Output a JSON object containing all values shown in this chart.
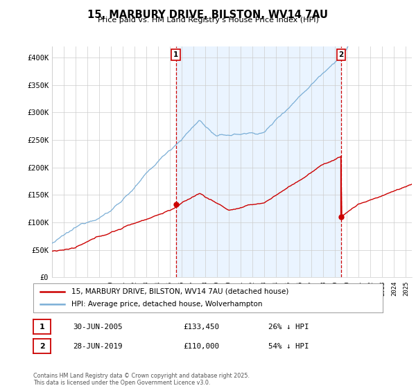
{
  "title": "15, MARBURY DRIVE, BILSTON, WV14 7AU",
  "subtitle": "Price paid vs. HM Land Registry's House Price Index (HPI)",
  "ylabel_ticks": [
    "£0",
    "£50K",
    "£100K",
    "£150K",
    "£200K",
    "£250K",
    "£300K",
    "£350K",
    "£400K"
  ],
  "ytick_values": [
    0,
    50000,
    100000,
    150000,
    200000,
    250000,
    300000,
    350000,
    400000
  ],
  "ylim": [
    0,
    420000
  ],
  "xlim_start": 1995.0,
  "xlim_end": 2025.5,
  "hpi_color": "#7aaed6",
  "price_color": "#cc0000",
  "marker1_x": 2005.5,
  "marker2_x": 2019.5,
  "marker1_price": 133450,
  "marker2_price": 110000,
  "legend_line1": "15, MARBURY DRIVE, BILSTON, WV14 7AU (detached house)",
  "legend_line2": "HPI: Average price, detached house, Wolverhampton",
  "table_row1": [
    "1",
    "30-JUN-2005",
    "£133,450",
    "26% ↓ HPI"
  ],
  "table_row2": [
    "2",
    "28-JUN-2019",
    "£110,000",
    "54% ↓ HPI"
  ],
  "footer": "Contains HM Land Registry data © Crown copyright and database right 2025.\nThis data is licensed under the Open Government Licence v3.0.",
  "background_color": "#ffffff",
  "grid_color": "#cccccc",
  "shade_color": "#ddeeff"
}
